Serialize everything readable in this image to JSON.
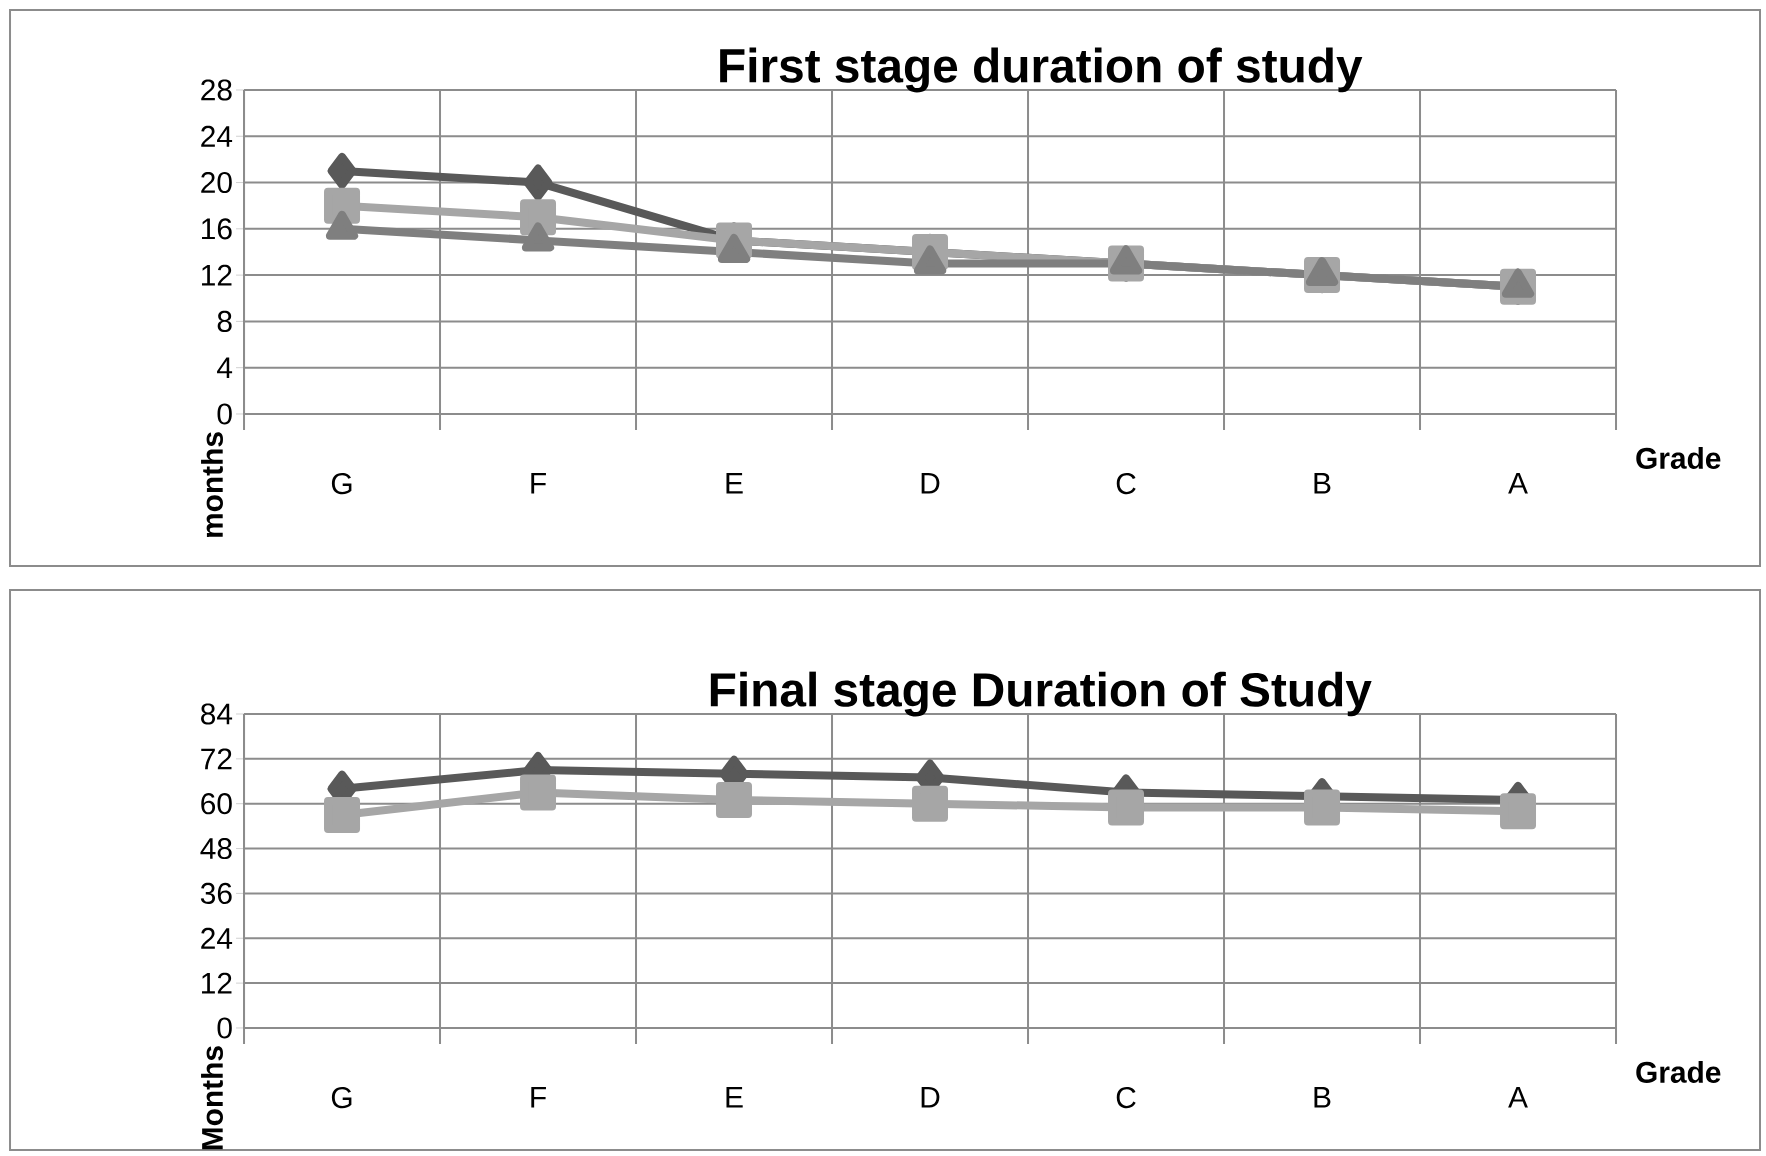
{
  "chart_data": [
    {
      "type": "line",
      "title": "First stage duration of study",
      "xlabel": "Grade",
      "ylabel": "months",
      "categories": [
        "G",
        "F",
        "E",
        "D",
        "C",
        "B",
        "A"
      ],
      "series": [
        {
          "color": "#595959",
          "marker": "diamond",
          "values": [
            21,
            20,
            15,
            14,
            13,
            12,
            11
          ]
        },
        {
          "color": "#a6a6a6",
          "marker": "square",
          "values": [
            18,
            17,
            15,
            14,
            13,
            12,
            11
          ]
        },
        {
          "color": "#7f7f7f",
          "marker": "triangle",
          "values": [
            16,
            15,
            14,
            13,
            13,
            12,
            11
          ]
        }
      ],
      "ylim": [
        0,
        28
      ],
      "yticks": [
        0,
        4,
        8,
        12,
        16,
        20,
        24,
        28
      ],
      "grid": true
    },
    {
      "type": "line",
      "title": "Final stage Duration of Study",
      "xlabel": "Grade",
      "ylabel": "Months",
      "categories": [
        "G",
        "F",
        "E",
        "D",
        "C",
        "B",
        "A"
      ],
      "series": [
        {
          "color": "#595959",
          "marker": "diamond",
          "values": [
            64,
            69,
            68,
            67,
            63,
            62,
            61
          ]
        },
        {
          "color": "#a6a6a6",
          "marker": "square",
          "values": [
            57,
            63,
            61,
            60,
            59,
            59,
            58
          ]
        }
      ],
      "ylim": [
        0,
        84
      ],
      "yticks": [
        0,
        12,
        24,
        36,
        48,
        60,
        72,
        84
      ],
      "grid": true
    }
  ]
}
